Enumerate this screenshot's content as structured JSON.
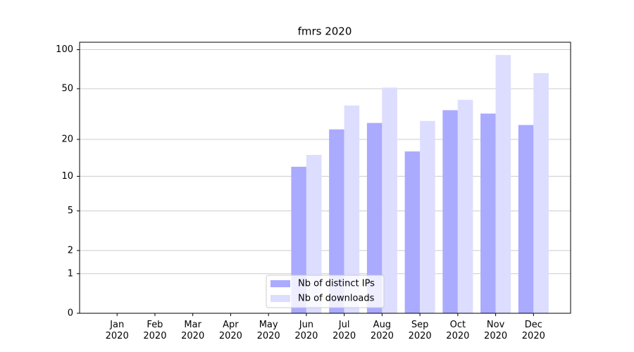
{
  "chart_data": {
    "type": "bar",
    "title": "fmrs 2020",
    "categories": [
      "Jan\n2020",
      "Feb\n2020",
      "Mar\n2020",
      "Apr\n2020",
      "May\n2020",
      "Jun\n2020",
      "Jul\n2020",
      "Aug\n2020",
      "Sep\n2020",
      "Oct\n2020",
      "Nov\n2020",
      "Dec\n2020"
    ],
    "series": [
      {
        "name": "Nb of distinct IPs",
        "color": "#aaaaff",
        "values": [
          0,
          0,
          0,
          0,
          0,
          12,
          24,
          27,
          16,
          34,
          32,
          26
        ]
      },
      {
        "name": "Nb of downloads",
        "color": "#ddddff",
        "values": [
          0,
          0,
          0,
          0,
          0,
          15,
          37,
          51,
          28,
          41,
          91,
          66
        ]
      }
    ],
    "y_scale": "log1p",
    "ylim": [
      0,
      114
    ],
    "yticks": [
      0,
      1,
      2,
      5,
      10,
      20,
      50,
      100
    ],
    "grid": true,
    "legend": "lower center"
  }
}
